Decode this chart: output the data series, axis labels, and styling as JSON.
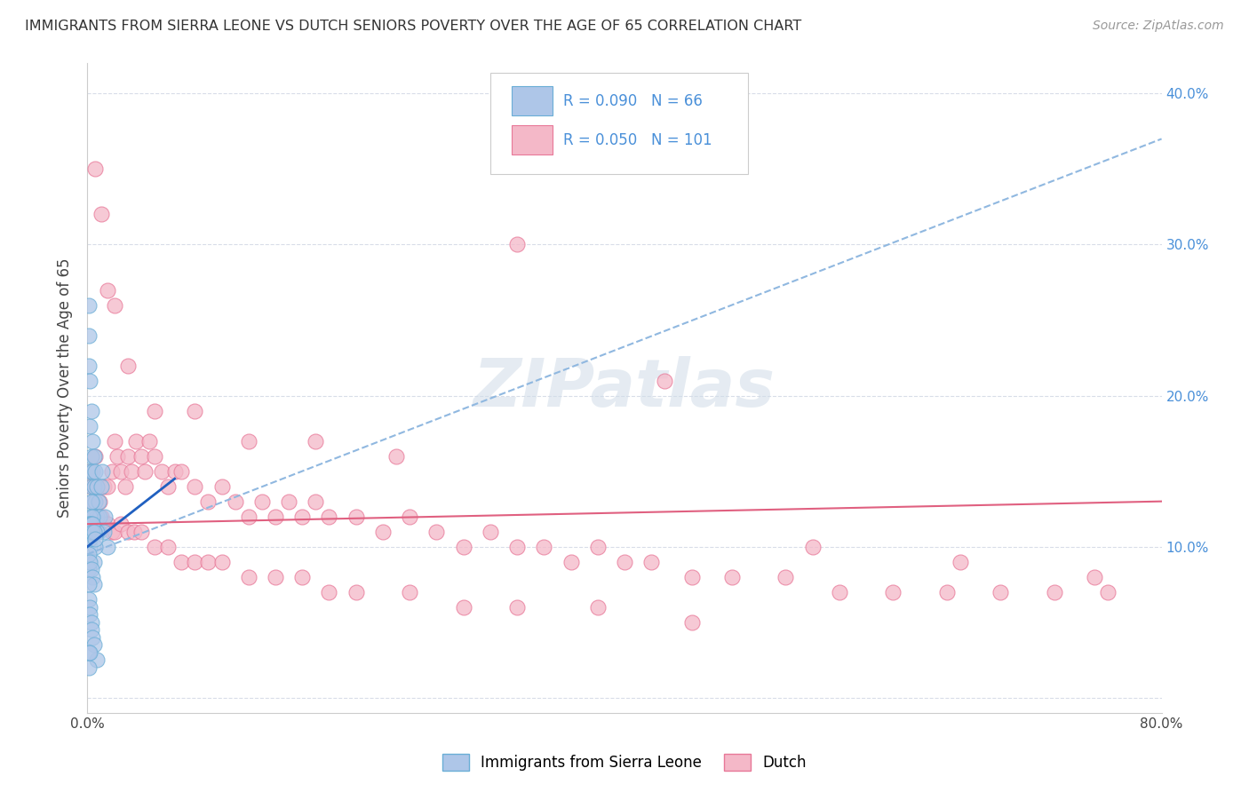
{
  "title": "IMMIGRANTS FROM SIERRA LEONE VS DUTCH SENIORS POVERTY OVER THE AGE OF 65 CORRELATION CHART",
  "source": "Source: ZipAtlas.com",
  "ylabel": "Seniors Poverty Over the Age of 65",
  "xlim": [
    0.0,
    0.8
  ],
  "ylim": [
    -0.01,
    0.42
  ],
  "xticks": [
    0.0,
    0.1,
    0.2,
    0.3,
    0.4,
    0.5,
    0.6,
    0.7,
    0.8
  ],
  "xticklabels": [
    "0.0%",
    "",
    "",
    "",
    "",
    "",
    "",
    "",
    "80.0%"
  ],
  "yticks": [
    0.0,
    0.1,
    0.2,
    0.3,
    0.4
  ],
  "yticklabels_right": [
    "",
    "10.0%",
    "20.0%",
    "30.0%",
    "40.0%"
  ],
  "series1_label": "Immigrants from Sierra Leone",
  "series1_R": "0.090",
  "series1_N": "66",
  "series1_color": "#aec6e8",
  "series1_edge": "#6aaed6",
  "series2_label": "Dutch",
  "series2_R": "0.050",
  "series2_N": "101",
  "series2_color": "#f4b8c8",
  "series2_edge": "#e87898",
  "trend1_dash_color": "#90b8e0",
  "trend1_solid_color": "#2060c0",
  "trend2_color": "#e06080",
  "watermark": "ZIPatlas",
  "watermark_color": "#d0dce8",
  "grid_color": "#d8dde8",
  "series1_x": [
    0.001,
    0.001,
    0.001,
    0.002,
    0.002,
    0.002,
    0.003,
    0.003,
    0.003,
    0.004,
    0.004,
    0.004,
    0.005,
    0.005,
    0.005,
    0.006,
    0.006,
    0.007,
    0.007,
    0.008,
    0.008,
    0.009,
    0.01,
    0.011,
    0.012,
    0.013,
    0.015,
    0.002,
    0.002,
    0.003,
    0.003,
    0.004,
    0.005,
    0.005,
    0.006,
    0.007,
    0.001,
    0.001,
    0.001,
    0.002,
    0.002,
    0.002,
    0.003,
    0.003,
    0.004,
    0.004,
    0.005,
    0.006,
    0.001,
    0.001,
    0.002,
    0.003,
    0.004,
    0.005,
    0.001,
    0.001,
    0.002,
    0.002,
    0.003,
    0.003,
    0.004,
    0.005,
    0.007,
    0.001,
    0.001,
    0.002
  ],
  "series1_y": [
    0.26,
    0.24,
    0.22,
    0.21,
    0.18,
    0.15,
    0.19,
    0.16,
    0.14,
    0.17,
    0.15,
    0.13,
    0.16,
    0.14,
    0.12,
    0.15,
    0.13,
    0.14,
    0.12,
    0.13,
    0.11,
    0.12,
    0.14,
    0.15,
    0.11,
    0.12,
    0.1,
    0.12,
    0.1,
    0.13,
    0.11,
    0.12,
    0.11,
    0.09,
    0.1,
    0.11,
    0.115,
    0.11,
    0.105,
    0.115,
    0.11,
    0.105,
    0.115,
    0.11,
    0.115,
    0.11,
    0.11,
    0.105,
    0.095,
    0.085,
    0.09,
    0.085,
    0.08,
    0.075,
    0.075,
    0.065,
    0.06,
    0.055,
    0.05,
    0.045,
    0.04,
    0.035,
    0.025,
    0.03,
    0.02,
    0.03
  ],
  "series2_x": [
    0.002,
    0.003,
    0.004,
    0.005,
    0.006,
    0.007,
    0.008,
    0.009,
    0.01,
    0.012,
    0.015,
    0.018,
    0.02,
    0.022,
    0.025,
    0.028,
    0.03,
    0.033,
    0.036,
    0.04,
    0.043,
    0.046,
    0.05,
    0.055,
    0.06,
    0.065,
    0.07,
    0.08,
    0.09,
    0.1,
    0.11,
    0.12,
    0.13,
    0.14,
    0.15,
    0.16,
    0.17,
    0.18,
    0.2,
    0.22,
    0.24,
    0.26,
    0.28,
    0.3,
    0.32,
    0.34,
    0.36,
    0.38,
    0.4,
    0.42,
    0.45,
    0.48,
    0.52,
    0.56,
    0.6,
    0.64,
    0.68,
    0.72,
    0.76,
    0.005,
    0.008,
    0.01,
    0.012,
    0.015,
    0.018,
    0.02,
    0.025,
    0.03,
    0.035,
    0.04,
    0.05,
    0.06,
    0.07,
    0.08,
    0.09,
    0.1,
    0.12,
    0.14,
    0.16,
    0.18,
    0.2,
    0.24,
    0.28,
    0.32,
    0.38,
    0.45,
    0.006,
    0.01,
    0.015,
    0.02,
    0.03,
    0.05,
    0.08,
    0.12,
    0.17,
    0.23,
    0.32,
    0.43,
    0.54,
    0.65,
    0.75
  ],
  "series2_y": [
    0.15,
    0.14,
    0.13,
    0.14,
    0.16,
    0.14,
    0.12,
    0.13,
    0.12,
    0.14,
    0.14,
    0.15,
    0.17,
    0.16,
    0.15,
    0.14,
    0.16,
    0.15,
    0.17,
    0.16,
    0.15,
    0.17,
    0.16,
    0.15,
    0.14,
    0.15,
    0.15,
    0.14,
    0.13,
    0.14,
    0.13,
    0.12,
    0.13,
    0.12,
    0.13,
    0.12,
    0.13,
    0.12,
    0.12,
    0.11,
    0.12,
    0.11,
    0.1,
    0.11,
    0.1,
    0.1,
    0.09,
    0.1,
    0.09,
    0.09,
    0.08,
    0.08,
    0.08,
    0.07,
    0.07,
    0.07,
    0.07,
    0.07,
    0.07,
    0.115,
    0.115,
    0.115,
    0.115,
    0.115,
    0.11,
    0.11,
    0.115,
    0.11,
    0.11,
    0.11,
    0.1,
    0.1,
    0.09,
    0.09,
    0.09,
    0.09,
    0.08,
    0.08,
    0.08,
    0.07,
    0.07,
    0.07,
    0.06,
    0.06,
    0.06,
    0.05,
    0.35,
    0.32,
    0.27,
    0.26,
    0.22,
    0.19,
    0.19,
    0.17,
    0.17,
    0.16,
    0.3,
    0.21,
    0.1,
    0.09,
    0.08
  ],
  "trend1_x0": 0.0,
  "trend1_y0": 0.095,
  "trend1_x1": 0.8,
  "trend1_y1": 0.37,
  "trend1_solid_x0": 0.0,
  "trend1_solid_y0": 0.1,
  "trend1_solid_x1": 0.065,
  "trend1_solid_y1": 0.145,
  "trend2_x0": 0.0,
  "trend2_y0": 0.115,
  "trend2_x1": 0.8,
  "trend2_y1": 0.13
}
